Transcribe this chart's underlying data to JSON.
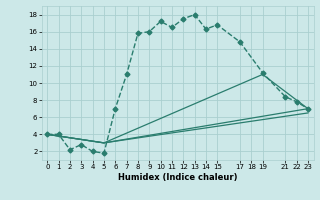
{
  "xlabel": "Humidex (Indice chaleur)",
  "bg_color": "#cce8e8",
  "grid_color": "#aacfcf",
  "line_color": "#2a7d6e",
  "x_ticks": [
    0,
    1,
    2,
    3,
    4,
    5,
    6,
    7,
    8,
    9,
    10,
    11,
    12,
    13,
    14,
    15,
    17,
    18,
    19,
    21,
    22,
    23
  ],
  "x_lim": [
    -0.5,
    23.5
  ],
  "y_lim": [
    1,
    19
  ],
  "y_ticks": [
    2,
    4,
    6,
    8,
    10,
    12,
    14,
    16,
    18
  ],
  "lines": [
    {
      "x": [
        0,
        1,
        2,
        3,
        4,
        5,
        6,
        7,
        8,
        9,
        10,
        11,
        12,
        13,
        14,
        15,
        17,
        19,
        21,
        22,
        23
      ],
      "y": [
        4,
        4,
        2.2,
        2.8,
        2,
        1.8,
        7,
        11,
        15.8,
        16,
        17.2,
        16.5,
        17.5,
        18,
        16.3,
        16.8,
        14.8,
        11.2,
        8.4,
        7.8,
        7
      ],
      "style": "--",
      "marker": "D",
      "markersize": 2.5,
      "linewidth": 1.0
    },
    {
      "x": [
        0,
        5,
        19,
        23
      ],
      "y": [
        4,
        3,
        11,
        7
      ],
      "style": "-",
      "marker": null,
      "linewidth": 0.9
    },
    {
      "x": [
        0,
        5,
        23
      ],
      "y": [
        4,
        3,
        7
      ],
      "style": "-",
      "marker": null,
      "linewidth": 0.9
    },
    {
      "x": [
        0,
        5,
        23
      ],
      "y": [
        4,
        3,
        6.5
      ],
      "style": "-",
      "marker": null,
      "linewidth": 0.9
    }
  ]
}
